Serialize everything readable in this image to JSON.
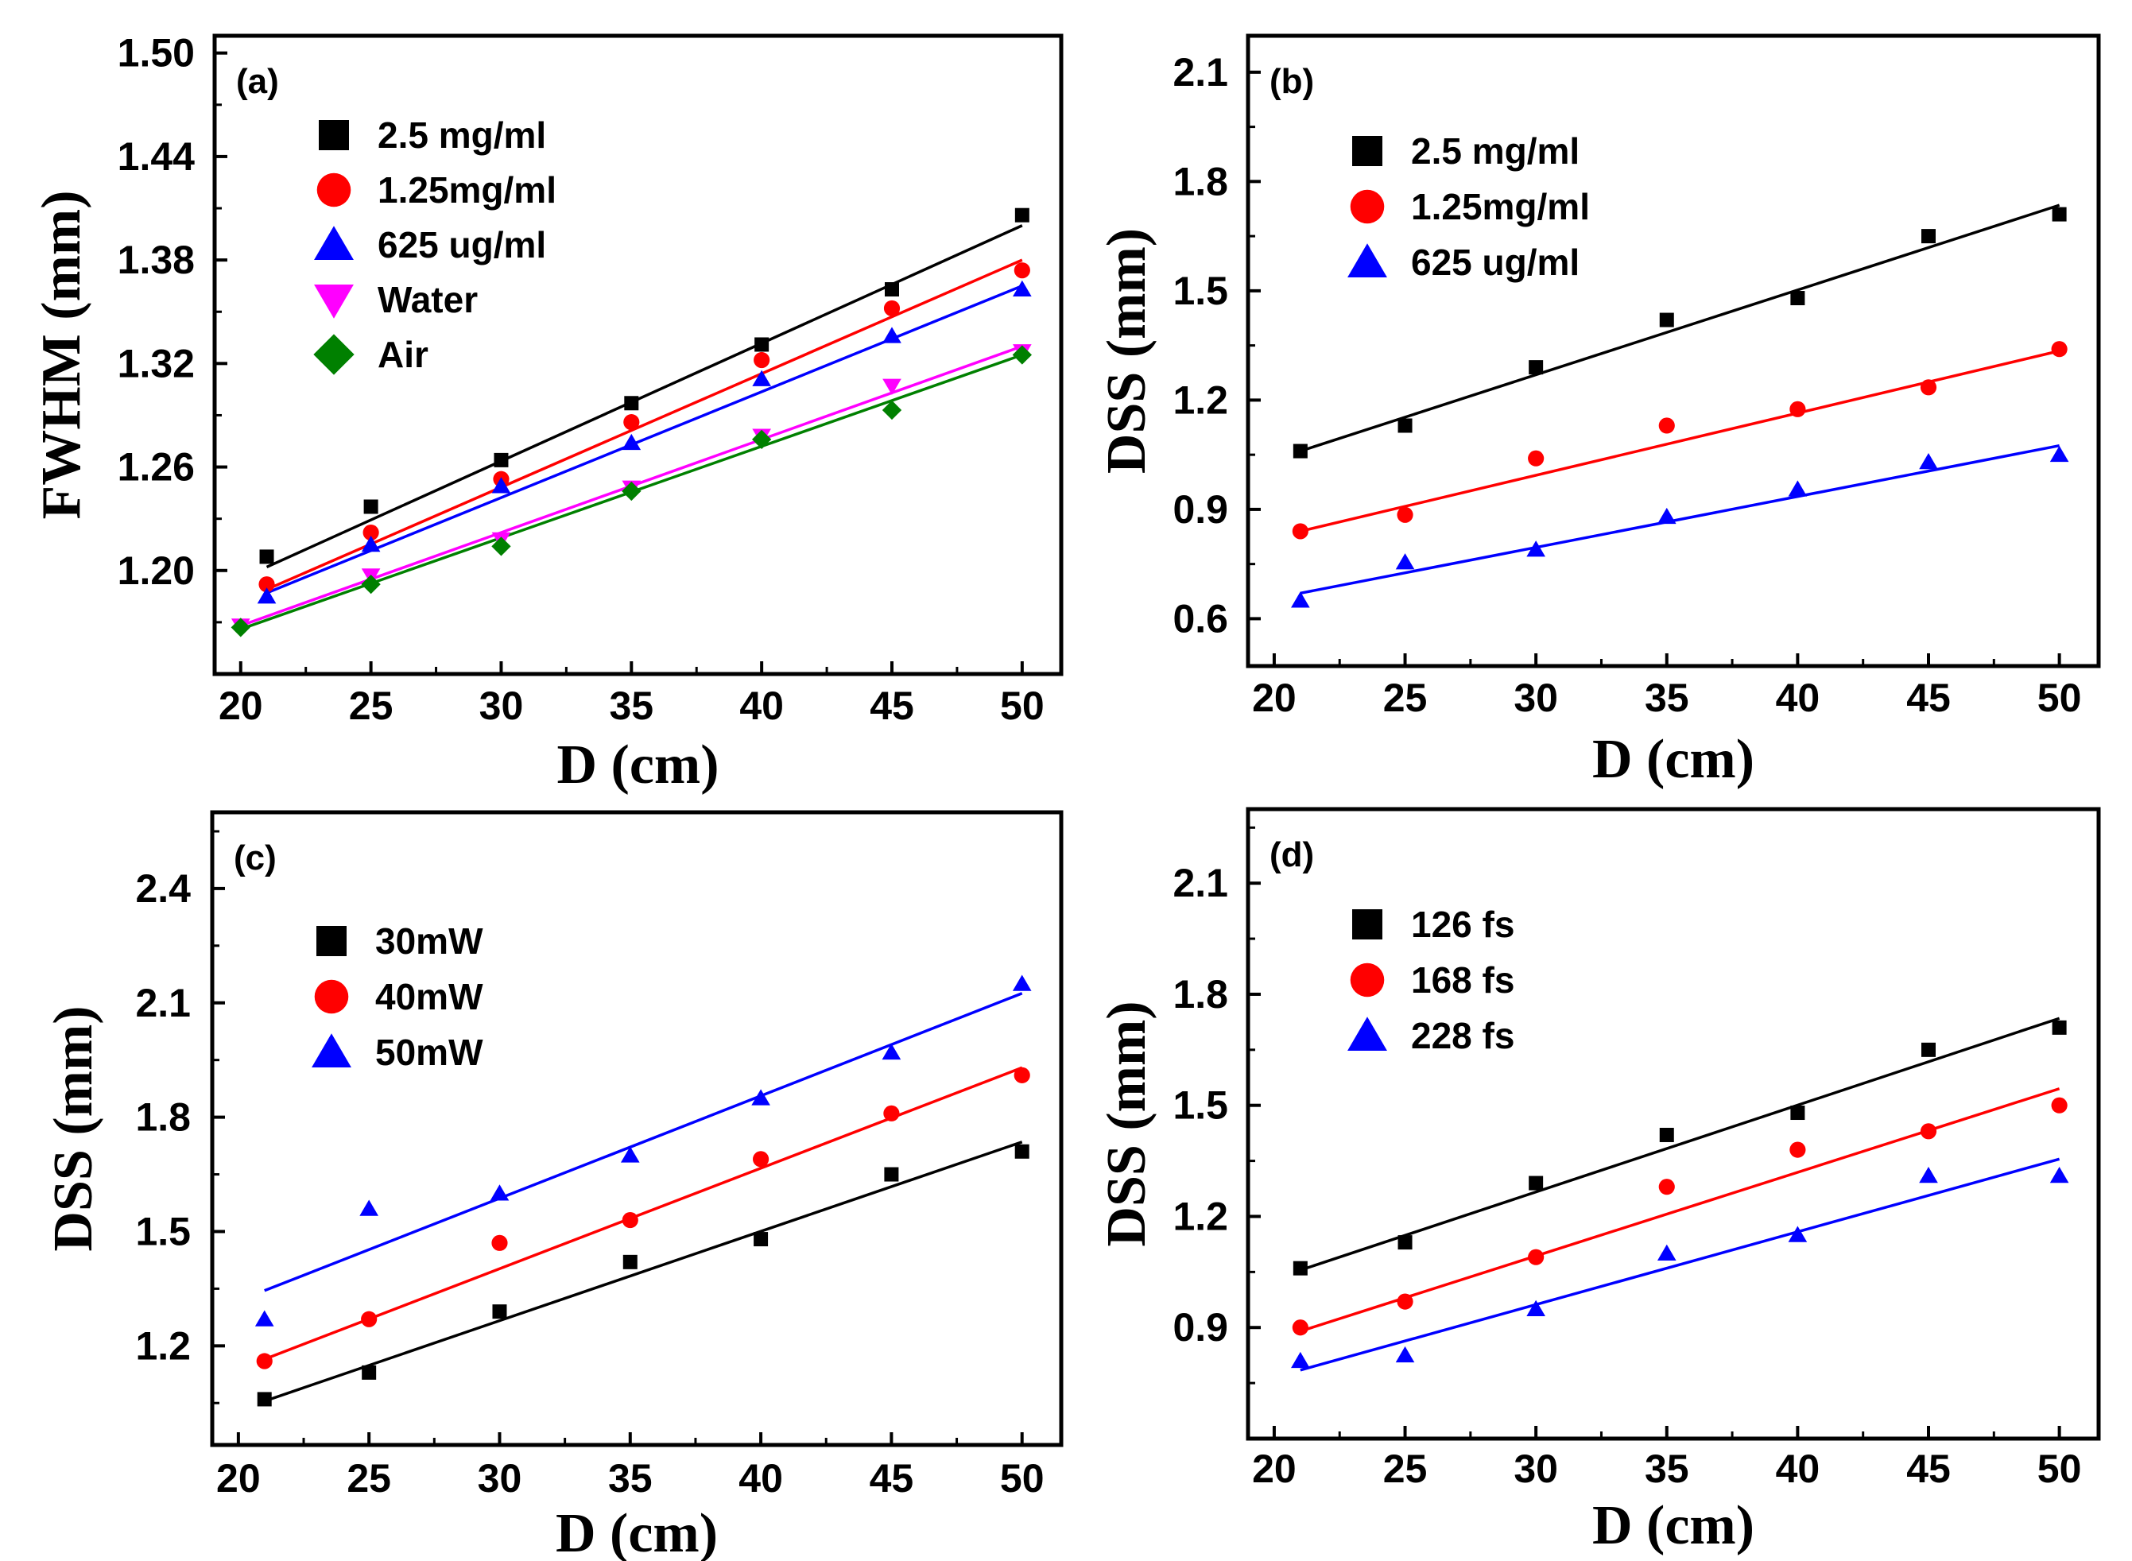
{
  "colors": {
    "black": "#000000",
    "red": "#ff0000",
    "blue": "#0000ff",
    "magenta": "#ff00ff",
    "green": "#008000"
  },
  "chart_data": [
    {
      "type": "scatter",
      "panel_label": "(a)",
      "xlabel": "D (cm)",
      "ylabel": "FWHM (mm)",
      "xlim": [
        19,
        51.5
      ],
      "ylim": [
        1.14,
        1.51
      ],
      "xticks": [
        20,
        25,
        30,
        35,
        40,
        45,
        50
      ],
      "yticks": [
        1.2,
        1.26,
        1.32,
        1.38,
        1.44,
        1.5
      ],
      "ytick_labels": [
        "1.20",
        "1.26",
        "1.32",
        "1.38",
        "1.44",
        "1.50"
      ],
      "xtick_labels": [
        "20",
        "25",
        "30",
        "35",
        "40",
        "45",
        "50"
      ],
      "legend_position": "top-left",
      "series": [
        {
          "name": "2.5 mg/ml",
          "marker": "square",
          "color": "#000000",
          "x": [
            21,
            25,
            30,
            35,
            40,
            45,
            50
          ],
          "y": [
            1.208,
            1.237,
            1.264,
            1.297,
            1.331,
            1.363,
            1.406
          ],
          "fit": [
            [
              21,
              1.202
            ],
            [
              50,
              1.4
            ]
          ]
        },
        {
          "name": "1.25mg/ml",
          "marker": "circle",
          "color": "#ff0000",
          "x": [
            21,
            25,
            30,
            35,
            40,
            45,
            50
          ],
          "y": [
            1.192,
            1.222,
            1.253,
            1.286,
            1.322,
            1.352,
            1.374
          ],
          "fit": [
            [
              21,
              1.189
            ],
            [
              50,
              1.38
            ]
          ]
        },
        {
          "name": "625 ug/ml",
          "marker": "triangle-up",
          "color": "#0000ff",
          "x": [
            21,
            25,
            30,
            35,
            40,
            45,
            50
          ],
          "y": [
            1.185,
            1.215,
            1.249,
            1.274,
            1.311,
            1.336,
            1.363
          ],
          "fit": [
            [
              21,
              1.187
            ],
            [
              50,
              1.365
            ]
          ]
        },
        {
          "name": "Water",
          "marker": "triangle-down",
          "color": "#ff00ff",
          "x": [
            20,
            25,
            30,
            35,
            40,
            45,
            50
          ],
          "y": [
            1.168,
            1.197,
            1.218,
            1.248,
            1.278,
            1.307,
            1.327
          ],
          "fit": [
            [
              20,
              1.168
            ],
            [
              50,
              1.33
            ]
          ]
        },
        {
          "name": "Air",
          "marker": "diamond",
          "color": "#008000",
          "x": [
            20,
            25,
            30,
            35,
            40,
            45,
            50
          ],
          "y": [
            1.167,
            1.192,
            1.214,
            1.246,
            1.276,
            1.293,
            1.325
          ],
          "fit": [
            [
              20,
              1.166
            ],
            [
              50,
              1.325
            ]
          ]
        }
      ]
    },
    {
      "type": "scatter",
      "panel_label": "(b)",
      "xlabel": "D (cm)",
      "ylabel": "DSS (mm)",
      "xlim": [
        19,
        51.5
      ],
      "ylim": [
        0.47,
        2.2
      ],
      "xticks": [
        20,
        25,
        30,
        35,
        40,
        45,
        50
      ],
      "yticks": [
        0.6,
        0.9,
        1.2,
        1.5,
        1.8,
        2.1
      ],
      "ytick_labels": [
        "0.6",
        "0.9",
        "1.2",
        "1.5",
        "1.8",
        "2.1"
      ],
      "xtick_labels": [
        "20",
        "25",
        "30",
        "35",
        "40",
        "45",
        "50"
      ],
      "legend_position": "top-left",
      "series": [
        {
          "name": "2.5  mg/ml",
          "marker": "square",
          "color": "#000000",
          "x": [
            21,
            25,
            30,
            35,
            40,
            45,
            50
          ],
          "y": [
            1.06,
            1.13,
            1.29,
            1.42,
            1.48,
            1.65,
            1.71
          ],
          "fit": [
            [
              21,
              1.06
            ],
            [
              50,
              1.735
            ]
          ]
        },
        {
          "name": "1.25mg/ml",
          "marker": "circle",
          "color": "#ff0000",
          "x": [
            21,
            25,
            30,
            35,
            40,
            45,
            50
          ],
          "y": [
            0.84,
            0.885,
            1.04,
            1.13,
            1.175,
            1.235,
            1.34
          ],
          "fit": [
            [
              21,
              0.84
            ],
            [
              50,
              1.335
            ]
          ]
        },
        {
          "name": "625 ug/ml",
          "marker": "triangle-up",
          "color": "#0000ff",
          "x": [
            21,
            25,
            30,
            35,
            40,
            45,
            50
          ],
          "y": [
            0.65,
            0.755,
            0.79,
            0.88,
            0.955,
            1.03,
            1.05
          ],
          "fit": [
            [
              21,
              0.67
            ],
            [
              50,
              1.075
            ]
          ]
        }
      ]
    },
    {
      "type": "scatter",
      "panel_label": "(c)",
      "xlabel": "D (cm)",
      "ylabel": "DSS (mm)",
      "xlim": [
        19,
        51.5
      ],
      "ylim": [
        0.94,
        2.6
      ],
      "xticks": [
        20,
        25,
        30,
        35,
        40,
        45,
        50
      ],
      "yticks": [
        1.2,
        1.5,
        1.8,
        2.1,
        2.4
      ],
      "ytick_labels": [
        "1.2",
        "1.5",
        "1.8",
        "2.1",
        "2.4"
      ],
      "xtick_labels": [
        "20",
        "25",
        "30",
        "35",
        "40",
        "45",
        "50"
      ],
      "legend_position": "top-left",
      "series": [
        {
          "name": "30mW",
          "marker": "square",
          "color": "#000000",
          "x": [
            21,
            25,
            30,
            35,
            40,
            45,
            50
          ],
          "y": [
            1.06,
            1.13,
            1.29,
            1.42,
            1.48,
            1.65,
            1.71
          ],
          "fit": [
            [
              21,
              1.055
            ],
            [
              50,
              1.735
            ]
          ]
        },
        {
          "name": "40mW",
          "marker": "circle",
          "color": "#ff0000",
          "x": [
            21,
            25,
            30,
            35,
            40,
            45,
            50
          ],
          "y": [
            1.16,
            1.27,
            1.47,
            1.53,
            1.69,
            1.81,
            1.91
          ],
          "fit": [
            [
              21,
              1.165
            ],
            [
              50,
              1.93
            ]
          ]
        },
        {
          "name": "50mW",
          "marker": "triangle-up",
          "color": "#0000ff",
          "x": [
            21,
            25,
            30,
            35,
            40,
            45,
            50
          ],
          "y": [
            1.27,
            1.56,
            1.6,
            1.7,
            1.85,
            1.97,
            2.15
          ],
          "fit": [
            [
              21,
              1.345
            ],
            [
              50,
              2.125
            ]
          ]
        }
      ]
    },
    {
      "type": "scatter",
      "panel_label": "(d)",
      "xlabel": "D (cm)",
      "ylabel": "DSS (mm)",
      "xlim": [
        19,
        51.5
      ],
      "ylim": [
        0.6,
        2.3
      ],
      "xticks": [
        20,
        25,
        30,
        35,
        40,
        45,
        50
      ],
      "yticks": [
        0.9,
        1.2,
        1.5,
        1.8,
        2.1
      ],
      "ytick_labels": [
        "0.9",
        "1.2",
        "1.5",
        "1.8",
        "2.1"
      ],
      "xtick_labels": [
        "20",
        "25",
        "30",
        "35",
        "40",
        "45",
        "50"
      ],
      "legend_position": "top-left",
      "series": [
        {
          "name": "126 fs",
          "marker": "square",
          "color": "#000000",
          "x": [
            21,
            25,
            30,
            35,
            40,
            45,
            50
          ],
          "y": [
            1.06,
            1.13,
            1.29,
            1.42,
            1.48,
            1.65,
            1.71
          ],
          "fit": [
            [
              21,
              1.055
            ],
            [
              50,
              1.735
            ]
          ]
        },
        {
          "name": "168 fs",
          "marker": "circle",
          "color": "#ff0000",
          "x": [
            21,
            25,
            30,
            35,
            40,
            45,
            50
          ],
          "y": [
            0.9,
            0.97,
            1.09,
            1.28,
            1.38,
            1.43,
            1.5
          ],
          "fit": [
            [
              21,
              0.89
            ],
            [
              50,
              1.545
            ]
          ]
        },
        {
          "name": "228 fs",
          "marker": "triangle-up",
          "color": "#0000ff",
          "x": [
            21,
            25,
            30,
            35,
            40,
            45,
            50
          ],
          "y": [
            0.81,
            0.825,
            0.95,
            1.1,
            1.15,
            1.31,
            1.31
          ],
          "fit": [
            [
              21,
              0.785
            ],
            [
              50,
              1.355
            ]
          ]
        }
      ]
    }
  ]
}
